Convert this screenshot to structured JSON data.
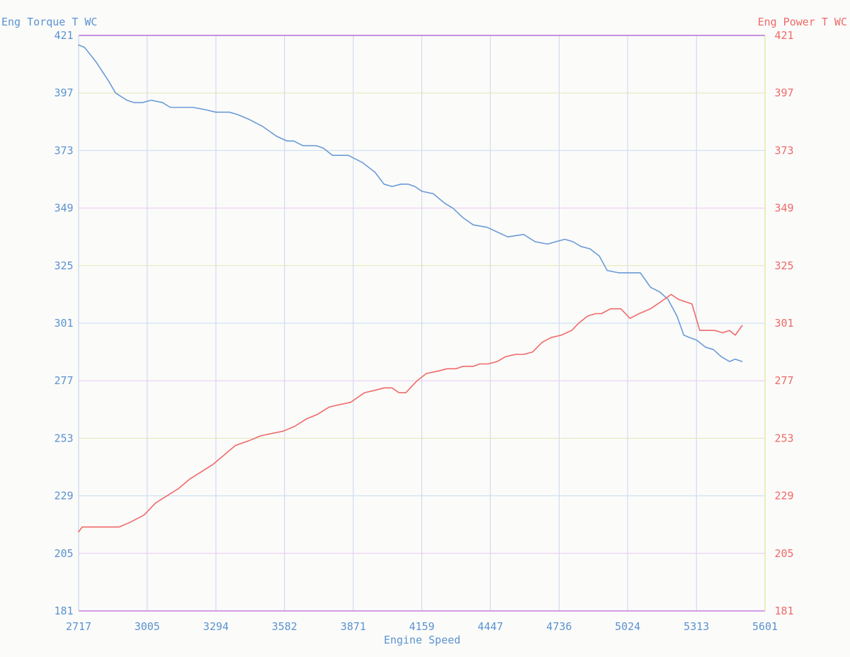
{
  "chart_data": {
    "type": "line",
    "title": "",
    "xlabel": "Engine Speed",
    "ylabel_left": "Eng Torque T WC",
    "ylabel_right": "Eng Power T WC",
    "xlim": [
      2717,
      5601
    ],
    "ylim_left": [
      181,
      421
    ],
    "ylim_right": [
      181,
      421
    ],
    "x_ticks": [
      "2717",
      "3005",
      "3294",
      "3582",
      "3871",
      "4159",
      "4447",
      "4736",
      "5024",
      "5313",
      "5601"
    ],
    "y_ticks_left": [
      "421",
      "397",
      "373",
      "349",
      "325",
      "301",
      "277",
      "253",
      "229",
      "205",
      "181"
    ],
    "y_ticks_right": [
      "421",
      "397",
      "373",
      "349",
      "325",
      "301",
      "277",
      "253",
      "229",
      "205",
      "181"
    ],
    "grid": true,
    "colors": {
      "torque": "#6b9bd6",
      "power": "#ef6a67",
      "left_axis_text": "#5b93cf",
      "right_axis_text": "#ee6a66",
      "grid_vertical": "#c9d6ea",
      "grid_horizontal": [
        "#ebc9ef",
        "#e4e7b2",
        "#c6ddf1"
      ],
      "top_axis": "#b36fd6",
      "bottom_axis": "#c77fe0"
    },
    "series": [
      {
        "name": "Eng Torque T WC",
        "axis": "left",
        "x": [
          2717,
          2742,
          2790,
          2843,
          2872,
          2920,
          2949,
          2987,
          3021,
          3069,
          3102,
          3150,
          3198,
          3251,
          3294,
          3323,
          3351,
          3385,
          3433,
          3491,
          3548,
          3592,
          3621,
          3659,
          3716,
          3745,
          3784,
          3812,
          3850,
          3909,
          3962,
          4000,
          4034,
          4072,
          4101,
          4130,
          4159,
          4207,
          4255,
          4289,
          4332,
          4375,
          4433,
          4476,
          4520,
          4587,
          4635,
          4688,
          4722,
          4760,
          4794,
          4827,
          4866,
          4905,
          4938,
          4986,
          5034,
          5077,
          5120,
          5159,
          5193,
          5231,
          5260,
          5284,
          5313,
          5351,
          5384,
          5418,
          5452,
          5476,
          5505
        ],
        "y": [
          417,
          416,
          410,
          402,
          397,
          394,
          393,
          393,
          394,
          393,
          391,
          391,
          391,
          390,
          389,
          389,
          389,
          388,
          386,
          383,
          379,
          377,
          377,
          375,
          375,
          374,
          371,
          371,
          371,
          368,
          364,
          359,
          358,
          359,
          359,
          358,
          356,
          355,
          351,
          349,
          345,
          342,
          341,
          339,
          337,
          338,
          335,
          334,
          335,
          336,
          335,
          333,
          332,
          329,
          323,
          322,
          322,
          322,
          316,
          314,
          311,
          304,
          296,
          295,
          294,
          291,
          290,
          287,
          285,
          286,
          285
        ]
      },
      {
        "name": "Eng Power T WC",
        "axis": "right",
        "x": [
          2717,
          2732,
          2780,
          2838,
          2887,
          2934,
          2992,
          3040,
          3088,
          3136,
          3184,
          3232,
          3280,
          3328,
          3376,
          3433,
          3481,
          3529,
          3577,
          3625,
          3673,
          3721,
          3769,
          3812,
          3860,
          3918,
          3962,
          4000,
          4034,
          4063,
          4092,
          4139,
          4178,
          4226,
          4264,
          4303,
          4332,
          4375,
          4403,
          4437,
          4476,
          4510,
          4553,
          4587,
          4625,
          4664,
          4702,
          4745,
          4789,
          4818,
          4856,
          4890,
          4914,
          4952,
          4995,
          5034,
          5072,
          5120,
          5164,
          5207,
          5236,
          5265,
          5294,
          5327,
          5351,
          5389,
          5423,
          5452,
          5476,
          5505
        ],
        "y": [
          214,
          216,
          216,
          216,
          216,
          218,
          221,
          226,
          229,
          232,
          236,
          239,
          242,
          246,
          250,
          252,
          254,
          255,
          256,
          258,
          261,
          263,
          266,
          267,
          268,
          272,
          273,
          274,
          274,
          272,
          272,
          277,
          280,
          281,
          282,
          282,
          283,
          283,
          284,
          284,
          285,
          287,
          288,
          288,
          289,
          293,
          295,
          296,
          298,
          301,
          304,
          305,
          305,
          307,
          307,
          303,
          305,
          307,
          310,
          313,
          311,
          310,
          309,
          298,
          298,
          298,
          297,
          298,
          296,
          300
        ]
      }
    ]
  }
}
